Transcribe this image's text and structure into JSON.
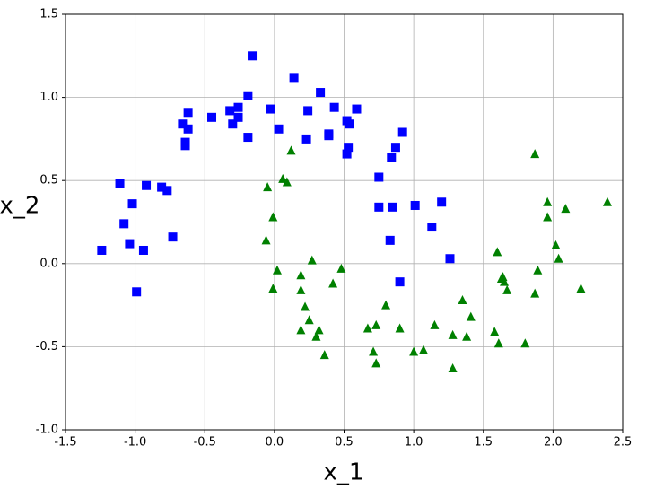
{
  "chart_data": {
    "type": "scatter",
    "xlabel": "x_1",
    "ylabel": "x_2",
    "xlim": [
      -1.5,
      2.5
    ],
    "ylim": [
      -1.0,
      1.5
    ],
    "xticks": [
      -1.5,
      {
        "value": -1,
        "label": "-1.0"
      },
      -0.5,
      {
        "value": 0,
        "label": "0.0"
      },
      0.5,
      {
        "value": 1,
        "label": "1.0"
      },
      1.5,
      {
        "value": 2,
        "label": "2.0"
      },
      2.5
    ],
    "yticks": [
      {
        "value": -1,
        "label": "-1.0"
      },
      -0.5,
      {
        "value": 0,
        "label": "0.0"
      },
      0.5,
      {
        "value": 1,
        "label": "1.0"
      },
      1.5
    ],
    "grid": true,
    "series": [
      {
        "color": "#0000ff",
        "marker": "square",
        "x": [
          -0.16,
          0.14,
          0.33,
          -0.19,
          -0.03,
          0.43,
          0.59,
          0.24,
          -0.26,
          -0.32,
          -0.26,
          -0.45,
          -0.62,
          -0.66,
          -0.62,
          -0.3,
          0.03,
          0.52,
          0.54,
          0.39,
          0.39,
          0.23,
          -0.19,
          -0.64,
          -0.64,
          0.53,
          0.52,
          0.92,
          0.87,
          0.84,
          0.75,
          -1.11,
          -0.92,
          -0.81,
          -0.77,
          0.75,
          0.85,
          1.01,
          1.2,
          -1.02,
          -1.08,
          1.13,
          -0.73,
          -1.04,
          -0.94,
          -1.24,
          0.83,
          1.26,
          0.9,
          -0.99
        ],
        "values": [
          1.25,
          1.12,
          1.03,
          1.01,
          0.93,
          0.94,
          0.93,
          0.92,
          0.94,
          0.92,
          0.88,
          0.88,
          0.91,
          0.84,
          0.81,
          0.84,
          0.81,
          0.86,
          0.84,
          0.78,
          0.77,
          0.75,
          0.76,
          0.73,
          0.71,
          0.7,
          0.66,
          0.79,
          0.7,
          0.64,
          0.52,
          0.48,
          0.47,
          0.46,
          0.44,
          0.34,
          0.34,
          0.35,
          0.37,
          0.36,
          0.24,
          0.22,
          0.16,
          0.12,
          0.08,
          0.08,
          0.14,
          0.03,
          -0.11,
          -0.17
        ]
      },
      {
        "color": "#008000",
        "marker": "triangle",
        "x": [
          1.87,
          0.12,
          0.06,
          0.09,
          -0.05,
          1.96,
          2.39,
          2.09,
          -0.01,
          1.96,
          -0.06,
          2.02,
          1.6,
          2.04,
          0.27,
          0.48,
          0.02,
          1.89,
          1.64,
          0.19,
          1.63,
          1.65,
          -0.01,
          0.42,
          2.2,
          1.67,
          0.19,
          1.87,
          1.35,
          0.8,
          0.22,
          1.41,
          0.25,
          0.73,
          1.15,
          0.67,
          0.9,
          0.32,
          0.19,
          1.58,
          1.28,
          0.3,
          1.38,
          1.61,
          1.8,
          1.0,
          1.07,
          0.71,
          0.36,
          0.73,
          1.28
        ],
        "values": [
          0.66,
          0.68,
          0.51,
          0.49,
          0.46,
          0.37,
          0.37,
          0.33,
          0.28,
          0.28,
          0.14,
          0.11,
          0.07,
          0.03,
          0.02,
          -0.03,
          -0.04,
          -0.04,
          -0.08,
          -0.07,
          -0.09,
          -0.11,
          -0.15,
          -0.12,
          -0.15,
          -0.16,
          -0.16,
          -0.18,
          -0.22,
          -0.25,
          -0.26,
          -0.32,
          -0.34,
          -0.37,
          -0.37,
          -0.39,
          -0.39,
          -0.4,
          -0.4,
          -0.41,
          -0.43,
          -0.44,
          -0.44,
          -0.48,
          -0.48,
          -0.53,
          -0.52,
          -0.53,
          -0.55,
          -0.6,
          -0.63
        ]
      }
    ]
  }
}
